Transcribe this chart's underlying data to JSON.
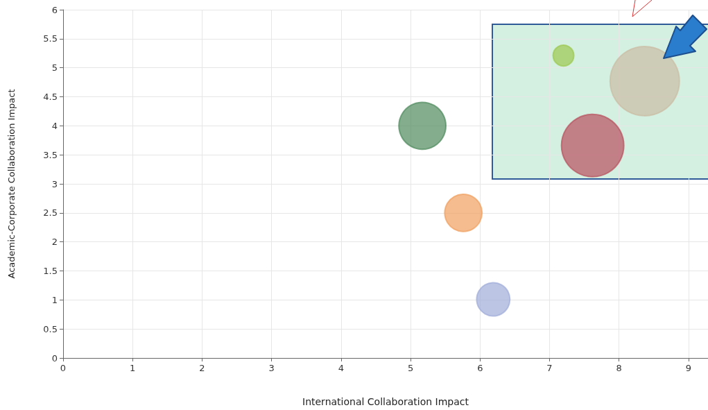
{
  "chart_data": {
    "type": "bubble",
    "xlabel": "International Collaboration Impact",
    "ylabel": "Academic-Corporate Collaboration Impact",
    "x": [
      5.17,
      5.76,
      6.19,
      7.2,
      8.37,
      7.62
    ],
    "values": [
      4.0,
      2.5,
      1.01,
      5.21,
      4.77,
      3.66
    ],
    "sizes": [
      0.46,
      0.29,
      0.23,
      0.09,
      1,
      0.81
    ],
    "colors": [
      "#4f8a5c",
      "#f0a060",
      "#a0acd8",
      "#9cc850",
      "#cbbca4",
      "#b8505e"
    ],
    "xlim": [
      0,
      9.28
    ],
    "xticks": [
      0,
      1,
      2,
      3,
      4,
      5,
      6,
      7,
      8,
      9
    ],
    "ylim": [
      0,
      6
    ],
    "yticks": [
      0,
      0.5,
      1,
      1.5,
      2,
      2.5,
      3,
      3.5,
      4,
      4.5,
      5,
      5.5,
      6
    ],
    "grid": true,
    "marker": "circle"
  }
}
